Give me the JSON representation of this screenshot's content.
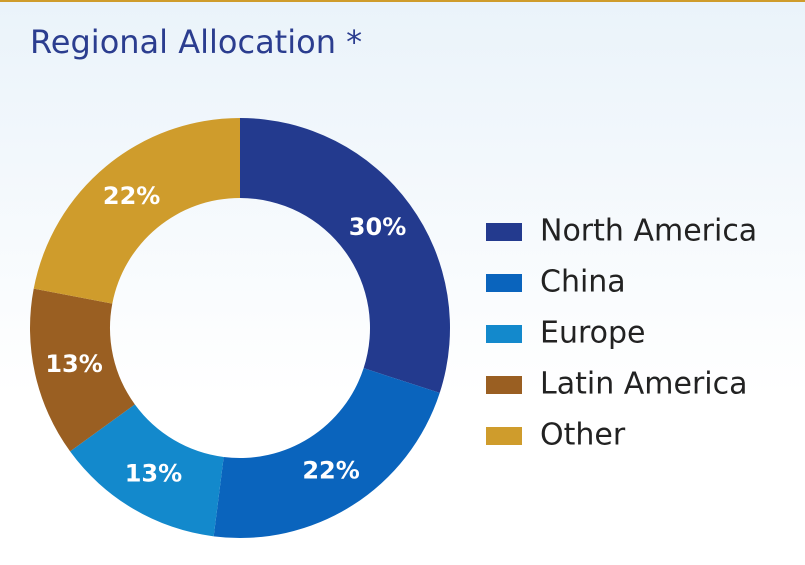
{
  "chart_data": {
    "type": "donut",
    "title": "Regional Allocation *",
    "categories": [
      "North America",
      "China",
      "Europe",
      "Latin America",
      "Other"
    ],
    "values": [
      30,
      22,
      13,
      13,
      22
    ],
    "value_labels": [
      "30%",
      "22%",
      "13%",
      "13%",
      "22%"
    ],
    "colors": [
      "#233a8e",
      "#0a64bd",
      "#1389cc",
      "#9a5f22",
      "#cf9c2c"
    ],
    "legend": "right"
  }
}
